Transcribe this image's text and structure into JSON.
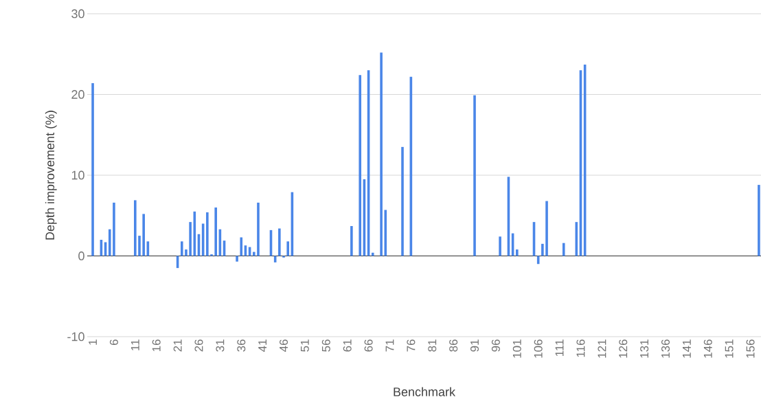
{
  "chart_data": {
    "type": "bar",
    "xlabel": "Benchmark",
    "ylabel": "Depth improvement (%)",
    "categories": [
      "1",
      null,
      null,
      null,
      null,
      "6",
      null,
      null,
      null,
      null,
      "11",
      null,
      null,
      null,
      null,
      "16",
      null,
      null,
      null,
      null,
      "21",
      null,
      null,
      null,
      null,
      "26",
      null,
      null,
      null,
      null,
      "31",
      null,
      null,
      null,
      null,
      "36",
      null,
      null,
      null,
      null,
      "41",
      null,
      null,
      null,
      null,
      "46",
      null,
      null,
      null,
      null,
      "51",
      null,
      null,
      null,
      null,
      "56",
      null,
      null,
      null,
      null,
      "61",
      null,
      null,
      null,
      null,
      "66",
      null,
      null,
      null,
      null,
      "71",
      null,
      null,
      null,
      null,
      "76",
      null,
      null,
      null,
      null,
      "81",
      null,
      null,
      null,
      null,
      "86",
      null,
      null,
      null,
      null,
      "91",
      null,
      null,
      null,
      null,
      "96",
      null,
      null,
      null,
      null,
      "101",
      null,
      null,
      null,
      null,
      "106",
      null,
      null,
      null,
      null,
      "111",
      null,
      null,
      null,
      null,
      "116",
      null,
      null,
      null,
      null,
      "121",
      null,
      null,
      null,
      null,
      "126",
      null,
      null,
      null,
      null,
      "131",
      null,
      null,
      null,
      null,
      "136",
      null,
      null,
      null,
      null,
      "141",
      null,
      null,
      null,
      null,
      "146",
      null,
      null,
      null,
      null,
      "151",
      null,
      null,
      null,
      null,
      "156",
      null,
      null
    ],
    "values": [
      21.4,
      0,
      2.0,
      1.7,
      3.3,
      6.6,
      0,
      0,
      0,
      0,
      6.9,
      2.5,
      5.2,
      1.8,
      0,
      0,
      0,
      0,
      0,
      0,
      -1.5,
      1.8,
      0.8,
      4.2,
      5.5,
      2.7,
      4.0,
      5.4,
      0.2,
      6.0,
      3.3,
      1.9,
      0,
      0,
      -0.7,
      2.3,
      1.3,
      1.1,
      0.5,
      6.6,
      0,
      0,
      3.2,
      -0.8,
      3.4,
      -0.2,
      1.8,
      7.9,
      0,
      0,
      0,
      0,
      0,
      0,
      0,
      0,
      0,
      0,
      0,
      0,
      0,
      3.7,
      0,
      22.4,
      9.5,
      23.0,
      0.4,
      0,
      25.2,
      5.7,
      0,
      0,
      0,
      13.5,
      0,
      22.2,
      0,
      0,
      0,
      0,
      0,
      0,
      0,
      0,
      0,
      0,
      0,
      0,
      0,
      0,
      19.9,
      0,
      0,
      0,
      0,
      0,
      2.4,
      0,
      9.8,
      2.8,
      0.8,
      0,
      0,
      0,
      4.2,
      -1.0,
      1.5,
      6.8,
      0,
      0,
      0,
      1.6,
      0,
      0,
      4.2,
      23.0,
      23.7,
      0,
      0,
      0,
      0,
      0,
      0,
      0,
      0,
      0,
      0,
      0,
      0,
      0,
      0,
      0,
      0,
      0,
      0,
      0,
      0,
      0,
      0,
      0,
      0,
      0,
      0,
      0,
      0,
      0,
      0,
      0,
      0,
      0,
      0,
      0,
      0,
      0,
      0,
      0,
      0,
      8.8
    ],
    "color": "#4a86e8",
    "ylim": [
      -10,
      30
    ],
    "yticks": [
      -10,
      0,
      10,
      20,
      30
    ],
    "grid": "y"
  }
}
